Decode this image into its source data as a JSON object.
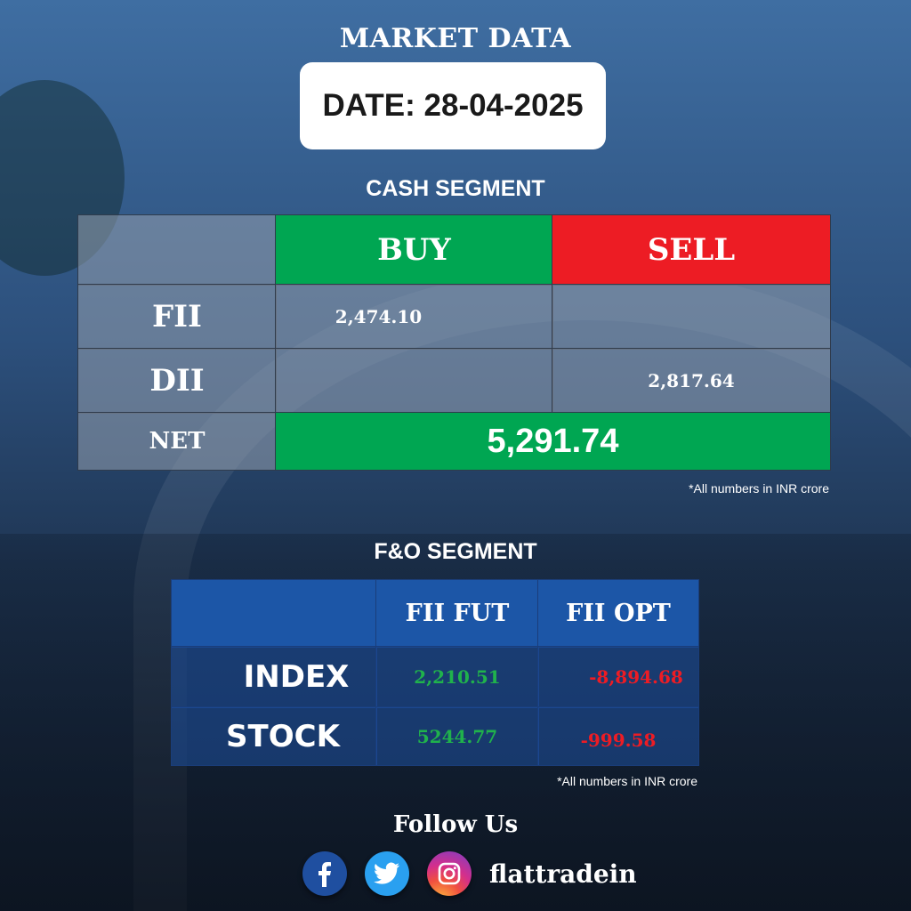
{
  "header": {
    "title": "MARKET DATA",
    "date": "DATE: 28-04-2025"
  },
  "cash_segment": {
    "title": "CASH SEGMENT",
    "buy_label": "BUY",
    "sell_label": "SELL",
    "rows": [
      {
        "label": "FII",
        "buy": "2,474.10",
        "sell": ""
      },
      {
        "label": "DII",
        "buy": "",
        "sell": "2,817.64"
      }
    ],
    "net_label": "NET",
    "net_value": "5,291.74",
    "note": "*All numbers in INR crore",
    "colors": {
      "buy": "#00a652",
      "sell": "#ed1c24"
    }
  },
  "fno_segment": {
    "title": "F&O SEGMENT",
    "col_fut": "FII FUT",
    "col_opt": "FII OPT",
    "rows": [
      {
        "label": "INDEX",
        "fut": "2,210.51",
        "opt": "-8,894.68"
      },
      {
        "label": "STOCK",
        "fut": "5244.77",
        "opt": "-999.58"
      }
    ],
    "note": "*All numbers in INR crore",
    "colors": {
      "positive": "#20b24c",
      "negative": "#ed1c24",
      "header": "#1c56a7"
    }
  },
  "footer": {
    "follow": "Follow Us",
    "icons": [
      "facebook-icon",
      "twitter-icon",
      "instagram-icon"
    ],
    "handle": "flattradein"
  }
}
